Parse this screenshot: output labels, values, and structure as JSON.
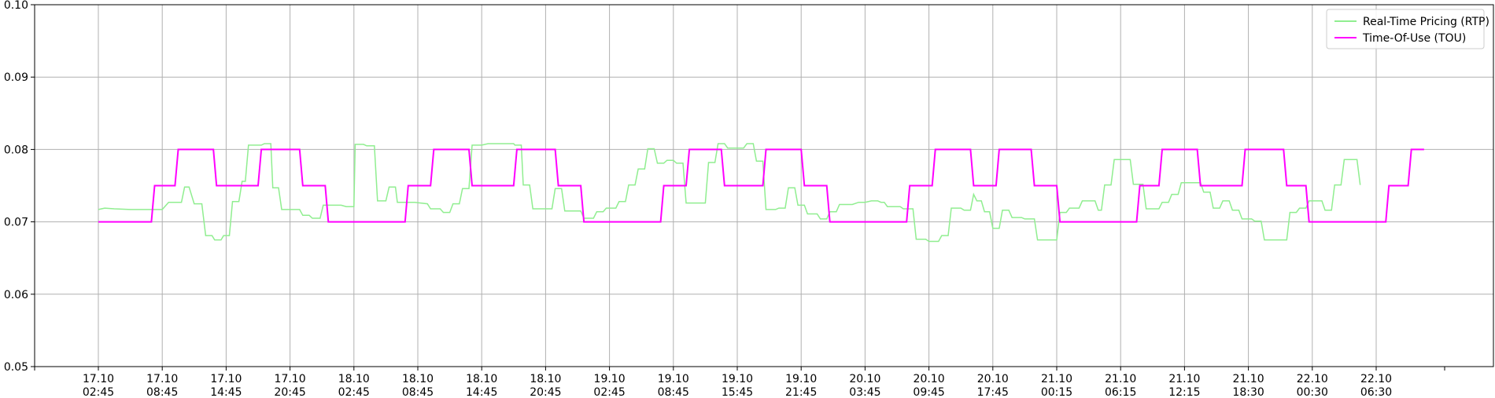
{
  "chart_data": {
    "type": "line",
    "title": "",
    "xlabel": "",
    "ylabel": "",
    "ylim": [
      0.05,
      0.1
    ],
    "y_ticks": [
      "0.05",
      "0.06",
      "0.07",
      "0.08",
      "0.09",
      "0.10"
    ],
    "x_ticks": [
      {
        "date": "17.10",
        "time": "02:45"
      },
      {
        "date": "17.10",
        "time": "08:45"
      },
      {
        "date": "17.10",
        "time": "14:45"
      },
      {
        "date": "17.10",
        "time": "20:45"
      },
      {
        "date": "18.10",
        "time": "02:45"
      },
      {
        "date": "18.10",
        "time": "08:45"
      },
      {
        "date": "18.10",
        "time": "14:45"
      },
      {
        "date": "18.10",
        "time": "20:45"
      },
      {
        "date": "19.10",
        "time": "02:45"
      },
      {
        "date": "19.10",
        "time": "08:45"
      },
      {
        "date": "19.10",
        "time": "15:45"
      },
      {
        "date": "19.10",
        "time": "21:45"
      },
      {
        "date": "20.10",
        "time": "03:45"
      },
      {
        "date": "20.10",
        "time": "09:45"
      },
      {
        "date": "20.10",
        "time": "17:45"
      },
      {
        "date": "21.10",
        "time": "00:15"
      },
      {
        "date": "21.10",
        "time": "06:15"
      },
      {
        "date": "21.10",
        "time": "12:15"
      },
      {
        "date": "21.10",
        "time": "18:30"
      },
      {
        "date": "22.10",
        "time": "00:30"
      },
      {
        "date": "22.10",
        "time": "06:30"
      }
    ],
    "grid": true,
    "legend_position": "top-right",
    "series": [
      {
        "name": "Real-Time Pricing (RTP)",
        "color": "#90ee90",
        "points": [
          [
            0.0,
            0.0717
          ],
          [
            0.1,
            0.0719
          ],
          [
            0.25,
            0.0718
          ],
          [
            0.5,
            0.0717
          ],
          [
            1.0,
            0.0717
          ],
          [
            1.1,
            0.0727
          ],
          [
            1.3,
            0.0727
          ],
          [
            1.35,
            0.0748
          ],
          [
            1.42,
            0.0748
          ],
          [
            1.5,
            0.0725
          ],
          [
            1.62,
            0.0725
          ],
          [
            1.68,
            0.0681
          ],
          [
            1.78,
            0.0681
          ],
          [
            1.82,
            0.0675
          ],
          [
            1.92,
            0.0675
          ],
          [
            1.96,
            0.0681
          ],
          [
            2.05,
            0.0681
          ],
          [
            2.1,
            0.0728
          ],
          [
            2.2,
            0.0728
          ],
          [
            2.25,
            0.0756
          ],
          [
            2.3,
            0.0756
          ],
          [
            2.35,
            0.0806
          ],
          [
            2.55,
            0.0806
          ],
          [
            2.6,
            0.0808
          ],
          [
            2.7,
            0.0808
          ],
          [
            2.73,
            0.0747
          ],
          [
            2.82,
            0.0747
          ],
          [
            2.87,
            0.0717
          ],
          [
            3.15,
            0.0717
          ],
          [
            3.2,
            0.0709
          ],
          [
            3.3,
            0.0709
          ],
          [
            3.35,
            0.0705
          ],
          [
            3.47,
            0.0705
          ],
          [
            3.52,
            0.0723
          ],
          [
            3.8,
            0.0723
          ],
          [
            3.88,
            0.0721
          ],
          [
            4.0,
            0.0721
          ],
          [
            4.02,
            0.0807
          ],
          [
            4.15,
            0.0807
          ],
          [
            4.2,
            0.0805
          ],
          [
            4.32,
            0.0805
          ],
          [
            4.37,
            0.0729
          ],
          [
            4.5,
            0.0729
          ],
          [
            4.55,
            0.0748
          ],
          [
            4.65,
            0.0748
          ],
          [
            4.68,
            0.0727
          ],
          [
            4.95,
            0.0727
          ],
          [
            5.15,
            0.0725
          ],
          [
            5.2,
            0.0718
          ],
          [
            5.35,
            0.0718
          ],
          [
            5.4,
            0.0713
          ],
          [
            5.5,
            0.0713
          ],
          [
            5.55,
            0.0725
          ],
          [
            5.65,
            0.0725
          ],
          [
            5.7,
            0.0746
          ],
          [
            5.8,
            0.0746
          ],
          [
            5.85,
            0.0806
          ],
          [
            6.0,
            0.0806
          ],
          [
            6.1,
            0.0808
          ],
          [
            6.5,
            0.0808
          ],
          [
            6.52,
            0.0806
          ],
          [
            6.62,
            0.0806
          ],
          [
            6.65,
            0.0751
          ],
          [
            6.75,
            0.0751
          ],
          [
            6.8,
            0.0718
          ],
          [
            7.1,
            0.0718
          ],
          [
            7.15,
            0.0746
          ],
          [
            7.25,
            0.0746
          ],
          [
            7.3,
            0.0715
          ],
          [
            7.55,
            0.0715
          ],
          [
            7.6,
            0.0705
          ],
          [
            7.75,
            0.0705
          ],
          [
            7.8,
            0.0714
          ],
          [
            7.9,
            0.0714
          ],
          [
            7.95,
            0.0719
          ],
          [
            8.1,
            0.0719
          ],
          [
            8.15,
            0.0728
          ],
          [
            8.25,
            0.0728
          ],
          [
            8.3,
            0.0751
          ],
          [
            8.4,
            0.0751
          ],
          [
            8.45,
            0.0773
          ],
          [
            8.55,
            0.0773
          ],
          [
            8.6,
            0.0801
          ],
          [
            8.7,
            0.0801
          ],
          [
            8.75,
            0.0781
          ],
          [
            8.85,
            0.0781
          ],
          [
            8.9,
            0.0785
          ],
          [
            9.0,
            0.0785
          ],
          [
            9.05,
            0.0781
          ],
          [
            9.15,
            0.0781
          ],
          [
            9.2,
            0.0726
          ],
          [
            9.5,
            0.0726
          ],
          [
            9.55,
            0.0782
          ],
          [
            9.65,
            0.0782
          ],
          [
            9.7,
            0.0808
          ],
          [
            9.8,
            0.0808
          ],
          [
            9.85,
            0.0802
          ],
          [
            10.1,
            0.0802
          ],
          [
            10.15,
            0.0808
          ],
          [
            10.25,
            0.0808
          ],
          [
            10.3,
            0.0784
          ],
          [
            10.4,
            0.0784
          ],
          [
            10.45,
            0.0717
          ],
          [
            10.6,
            0.0717
          ],
          [
            10.65,
            0.0719
          ],
          [
            10.75,
            0.0719
          ],
          [
            10.8,
            0.0747
          ],
          [
            10.9,
            0.0747
          ],
          [
            10.95,
            0.0723
          ],
          [
            11.05,
            0.0723
          ],
          [
            11.1,
            0.0711
          ],
          [
            11.25,
            0.0711
          ],
          [
            11.3,
            0.0704
          ],
          [
            11.4,
            0.0704
          ],
          [
            11.45,
            0.0714
          ],
          [
            11.55,
            0.0714
          ],
          [
            11.6,
            0.0724
          ],
          [
            11.8,
            0.0724
          ],
          [
            11.9,
            0.0727
          ],
          [
            12.0,
            0.0727
          ],
          [
            12.1,
            0.0729
          ],
          [
            12.2,
            0.0729
          ],
          [
            12.25,
            0.0727
          ],
          [
            12.3,
            0.0727
          ],
          [
            12.35,
            0.0721
          ],
          [
            12.55,
            0.0721
          ],
          [
            12.6,
            0.0718
          ],
          [
            12.75,
            0.0718
          ],
          [
            12.8,
            0.0676
          ],
          [
            12.95,
            0.0676
          ],
          [
            13.0,
            0.0673
          ],
          [
            13.15,
            0.0673
          ],
          [
            13.2,
            0.0681
          ],
          [
            13.3,
            0.0681
          ],
          [
            13.35,
            0.0719
          ],
          [
            13.5,
            0.0719
          ],
          [
            13.55,
            0.0716
          ],
          [
            13.65,
            0.0716
          ],
          [
            13.7,
            0.0738
          ],
          [
            13.75,
            0.0729
          ],
          [
            13.82,
            0.0729
          ],
          [
            13.87,
            0.0714
          ],
          [
            13.95,
            0.0714
          ],
          [
            14.0,
            0.0691
          ],
          [
            14.1,
            0.0691
          ],
          [
            14.15,
            0.0716
          ],
          [
            14.25,
            0.0716
          ],
          [
            14.3,
            0.0706
          ],
          [
            14.45,
            0.0706
          ],
          [
            14.5,
            0.0704
          ],
          [
            14.65,
            0.0704
          ],
          [
            14.7,
            0.0675
          ],
          [
            15.0,
            0.0675
          ],
          [
            15.05,
            0.0713
          ],
          [
            15.15,
            0.0713
          ],
          [
            15.2,
            0.0719
          ],
          [
            15.35,
            0.0719
          ],
          [
            15.4,
            0.0729
          ],
          [
            15.6,
            0.0729
          ],
          [
            15.65,
            0.0716
          ],
          [
            15.7,
            0.0716
          ],
          [
            15.75,
            0.0751
          ],
          [
            15.85,
            0.0751
          ],
          [
            15.9,
            0.0786
          ],
          [
            16.15,
            0.0786
          ],
          [
            16.2,
            0.0752
          ],
          [
            16.35,
            0.0752
          ],
          [
            16.4,
            0.0718
          ],
          [
            16.6,
            0.0718
          ],
          [
            16.65,
            0.0727
          ],
          [
            16.75,
            0.0727
          ],
          [
            16.8,
            0.0738
          ],
          [
            16.9,
            0.0738
          ],
          [
            16.95,
            0.0754
          ],
          [
            17.25,
            0.0754
          ],
          [
            17.3,
            0.0741
          ],
          [
            17.4,
            0.0741
          ],
          [
            17.45,
            0.0719
          ],
          [
            17.55,
            0.0719
          ],
          [
            17.6,
            0.0729
          ],
          [
            17.7,
            0.0729
          ],
          [
            17.75,
            0.0716
          ],
          [
            17.85,
            0.0716
          ],
          [
            17.9,
            0.0704
          ],
          [
            18.05,
            0.0704
          ],
          [
            18.1,
            0.0701
          ],
          [
            18.2,
            0.0701
          ],
          [
            18.25,
            0.0675
          ],
          [
            18.6,
            0.0675
          ],
          [
            18.65,
            0.0713
          ],
          [
            18.75,
            0.0713
          ],
          [
            18.8,
            0.0719
          ],
          [
            18.9,
            0.0719
          ],
          [
            18.95,
            0.0729
          ],
          [
            19.15,
            0.0729
          ],
          [
            19.2,
            0.0716
          ],
          [
            19.3,
            0.0716
          ],
          [
            19.35,
            0.0751
          ],
          [
            19.45,
            0.0751
          ],
          [
            19.5,
            0.0786
          ],
          [
            19.7,
            0.0786
          ],
          [
            19.75,
            0.0751
          ]
        ]
      },
      {
        "name": "Time-Of-Use (TOU)",
        "color": "#ff00ff",
        "points": [
          [
            0.0,
            0.07
          ],
          [
            0.83,
            0.07
          ],
          [
            0.88,
            0.075
          ],
          [
            1.2,
            0.075
          ],
          [
            1.25,
            0.08
          ],
          [
            1.8,
            0.08
          ],
          [
            1.85,
            0.075
          ],
          [
            2.5,
            0.075
          ],
          [
            2.55,
            0.08
          ],
          [
            3.15,
            0.08
          ],
          [
            3.2,
            0.075
          ],
          [
            3.55,
            0.075
          ],
          [
            3.6,
            0.07
          ],
          [
            4.8,
            0.07
          ],
          [
            4.85,
            0.075
          ],
          [
            5.2,
            0.075
          ],
          [
            5.25,
            0.08
          ],
          [
            5.8,
            0.08
          ],
          [
            5.85,
            0.075
          ],
          [
            6.5,
            0.075
          ],
          [
            6.55,
            0.08
          ],
          [
            7.15,
            0.08
          ],
          [
            7.2,
            0.075
          ],
          [
            7.55,
            0.075
          ],
          [
            7.6,
            0.07
          ],
          [
            8.8,
            0.07
          ],
          [
            8.85,
            0.075
          ],
          [
            9.2,
            0.075
          ],
          [
            9.25,
            0.08
          ],
          [
            9.75,
            0.08
          ],
          [
            9.8,
            0.075
          ],
          [
            10.4,
            0.075
          ],
          [
            10.45,
            0.08
          ],
          [
            11.0,
            0.08
          ],
          [
            11.05,
            0.075
          ],
          [
            11.4,
            0.075
          ],
          [
            11.45,
            0.07
          ],
          [
            12.65,
            0.07
          ],
          [
            12.7,
            0.075
          ],
          [
            13.05,
            0.075
          ],
          [
            13.1,
            0.08
          ],
          [
            13.65,
            0.08
          ],
          [
            13.7,
            0.075
          ],
          [
            14.05,
            0.075
          ],
          [
            14.1,
            0.08
          ],
          [
            14.6,
            0.08
          ],
          [
            14.65,
            0.075
          ],
          [
            15.0,
            0.075
          ],
          [
            15.05,
            0.07
          ],
          [
            16.25,
            0.07
          ],
          [
            16.3,
            0.075
          ],
          [
            16.6,
            0.075
          ],
          [
            16.65,
            0.08
          ],
          [
            17.2,
            0.08
          ],
          [
            17.25,
            0.075
          ],
          [
            17.9,
            0.075
          ],
          [
            17.95,
            0.08
          ],
          [
            18.55,
            0.08
          ],
          [
            18.6,
            0.075
          ],
          [
            18.9,
            0.075
          ],
          [
            18.95,
            0.07
          ],
          [
            20.15,
            0.07
          ],
          [
            20.2,
            0.075
          ],
          [
            20.5,
            0.075
          ],
          [
            20.55,
            0.08
          ],
          [
            20.75,
            0.08
          ]
        ]
      }
    ]
  }
}
